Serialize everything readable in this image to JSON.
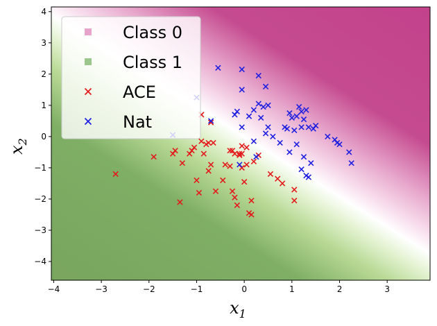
{
  "chart_data": {
    "type": "scatter",
    "title": "",
    "xlabel": "x",
    "xlabel_sub": "1",
    "ylabel": "x",
    "ylabel_sub": "2",
    "xlim": [
      -4.05,
      3.9
    ],
    "ylim": [
      -4.6,
      4.15
    ],
    "xticks": [
      -4,
      -3,
      -2,
      -1,
      0,
      1,
      2,
      3
    ],
    "yticks": [
      -4,
      -3,
      -2,
      -1,
      0,
      1,
      2,
      3,
      4
    ],
    "grid": false,
    "legend_position": "top-left",
    "decision_boundary": {
      "description_classes": [
        "Class 0",
        "Class 1"
      ],
      "boundary_line": [
        [
          -4.05,
          3.9
        ],
        [
          3.9,
          -3.75
        ]
      ],
      "class0_color": "#c2418a",
      "class1_color": "#7aab62"
    },
    "legend": [
      {
        "label": "Class 0",
        "marker": "square",
        "color": "#e7a3c9"
      },
      {
        "label": "Class 1",
        "marker": "square",
        "color": "#9cc78c"
      },
      {
        "label": "ACE",
        "marker": "x",
        "color": "#e31a1c"
      },
      {
        "label": "Nat",
        "marker": "x",
        "color": "#1f1fe0"
      }
    ],
    "series": [
      {
        "name": "ACE",
        "color": "#e31a1c",
        "points": [
          [
            -2.7,
            -1.2
          ],
          [
            -1.9,
            -0.65
          ],
          [
            -1.45,
            -0.45
          ],
          [
            -1.5,
            -0.55
          ],
          [
            -1.3,
            -0.85
          ],
          [
            -1.35,
            -2.1
          ],
          [
            -1.15,
            -0.55
          ],
          [
            -1.1,
            -0.45
          ],
          [
            -1.05,
            -0.35
          ],
          [
            -1.0,
            -1.4
          ],
          [
            -0.95,
            -1.8
          ],
          [
            -0.9,
            -0.15
          ],
          [
            -0.85,
            -0.55
          ],
          [
            -0.8,
            -0.25
          ],
          [
            -0.75,
            -0.2
          ],
          [
            -0.75,
            -1.1
          ],
          [
            -0.7,
            -0.9
          ],
          [
            -0.7,
            0.45
          ],
          [
            -0.65,
            -0.2
          ],
          [
            -0.6,
            -1.75
          ],
          [
            -0.45,
            -1.4
          ],
          [
            -0.4,
            -0.9
          ],
          [
            -0.3,
            -0.95
          ],
          [
            -0.25,
            -0.45
          ],
          [
            -0.25,
            -1.75
          ],
          [
            -0.2,
            -1.95
          ],
          [
            -0.2,
            -0.55
          ],
          [
            -0.15,
            -2.2
          ],
          [
            -0.1,
            -0.6
          ],
          [
            -0.05,
            -0.3
          ],
          [
            -0.05,
            -0.55
          ],
          [
            -0.05,
            -1.0
          ],
          [
            0.0,
            -1.45
          ],
          [
            0.05,
            -0.35
          ],
          [
            0.05,
            -0.9
          ],
          [
            0.1,
            -2.45
          ],
          [
            0.15,
            -2.5
          ],
          [
            0.15,
            -2.05
          ],
          [
            0.2,
            -0.8
          ],
          [
            0.3,
            -0.6
          ],
          [
            0.55,
            -1.2
          ],
          [
            0.7,
            -1.35
          ],
          [
            0.8,
            -1.5
          ],
          [
            1.05,
            -1.7
          ],
          [
            1.05,
            -2.05
          ],
          [
            -0.9,
            0.7
          ],
          [
            -0.3,
            -0.45
          ],
          [
            -0.1,
            -0.55
          ]
        ]
      },
      {
        "name": "Nat",
        "color": "#1f1fe0",
        "points": [
          [
            -0.55,
            2.2
          ],
          [
            -0.05,
            2.15
          ],
          [
            0.3,
            1.95
          ],
          [
            0.45,
            1.6
          ],
          [
            -0.05,
            1.5
          ],
          [
            -1.0,
            1.25
          ],
          [
            -0.15,
            0.8
          ],
          [
            -0.2,
            0.7
          ],
          [
            0.1,
            0.65
          ],
          [
            0.2,
            0.85
          ],
          [
            0.3,
            1.05
          ],
          [
            0.4,
            0.95
          ],
          [
            0.5,
            1.0
          ],
          [
            0.35,
            0.6
          ],
          [
            0.5,
            0.3
          ],
          [
            0.45,
            0.1
          ],
          [
            -0.05,
            0.3
          ],
          [
            -0.7,
            0.5
          ],
          [
            -1.5,
            0.05
          ],
          [
            0.2,
            -0.15
          ],
          [
            0.25,
            -0.65
          ],
          [
            -0.1,
            -0.9
          ],
          [
            0.6,
            0.0
          ],
          [
            0.75,
            -0.2
          ],
          [
            0.85,
            0.3
          ],
          [
            0.9,
            0.25
          ],
          [
            0.95,
            -0.5
          ],
          [
            0.95,
            0.75
          ],
          [
            1.0,
            0.6
          ],
          [
            1.05,
            0.2
          ],
          [
            1.1,
            0.65
          ],
          [
            1.15,
            0.95
          ],
          [
            1.2,
            0.8
          ],
          [
            1.2,
            0.3
          ],
          [
            1.25,
            0.55
          ],
          [
            1.3,
            0.85
          ],
          [
            1.35,
            0.3
          ],
          [
            1.1,
            -0.25
          ],
          [
            1.2,
            -1.05
          ],
          [
            1.25,
            -0.65
          ],
          [
            1.3,
            -1.25
          ],
          [
            1.35,
            -1.3
          ],
          [
            1.4,
            -0.85
          ],
          [
            1.45,
            0.25
          ],
          [
            1.5,
            0.35
          ],
          [
            1.75,
            0.0
          ],
          [
            1.9,
            -0.1
          ],
          [
            1.95,
            -0.2
          ],
          [
            2.0,
            -0.25
          ],
          [
            2.2,
            -0.5
          ],
          [
            2.25,
            -0.85
          ]
        ]
      }
    ]
  }
}
